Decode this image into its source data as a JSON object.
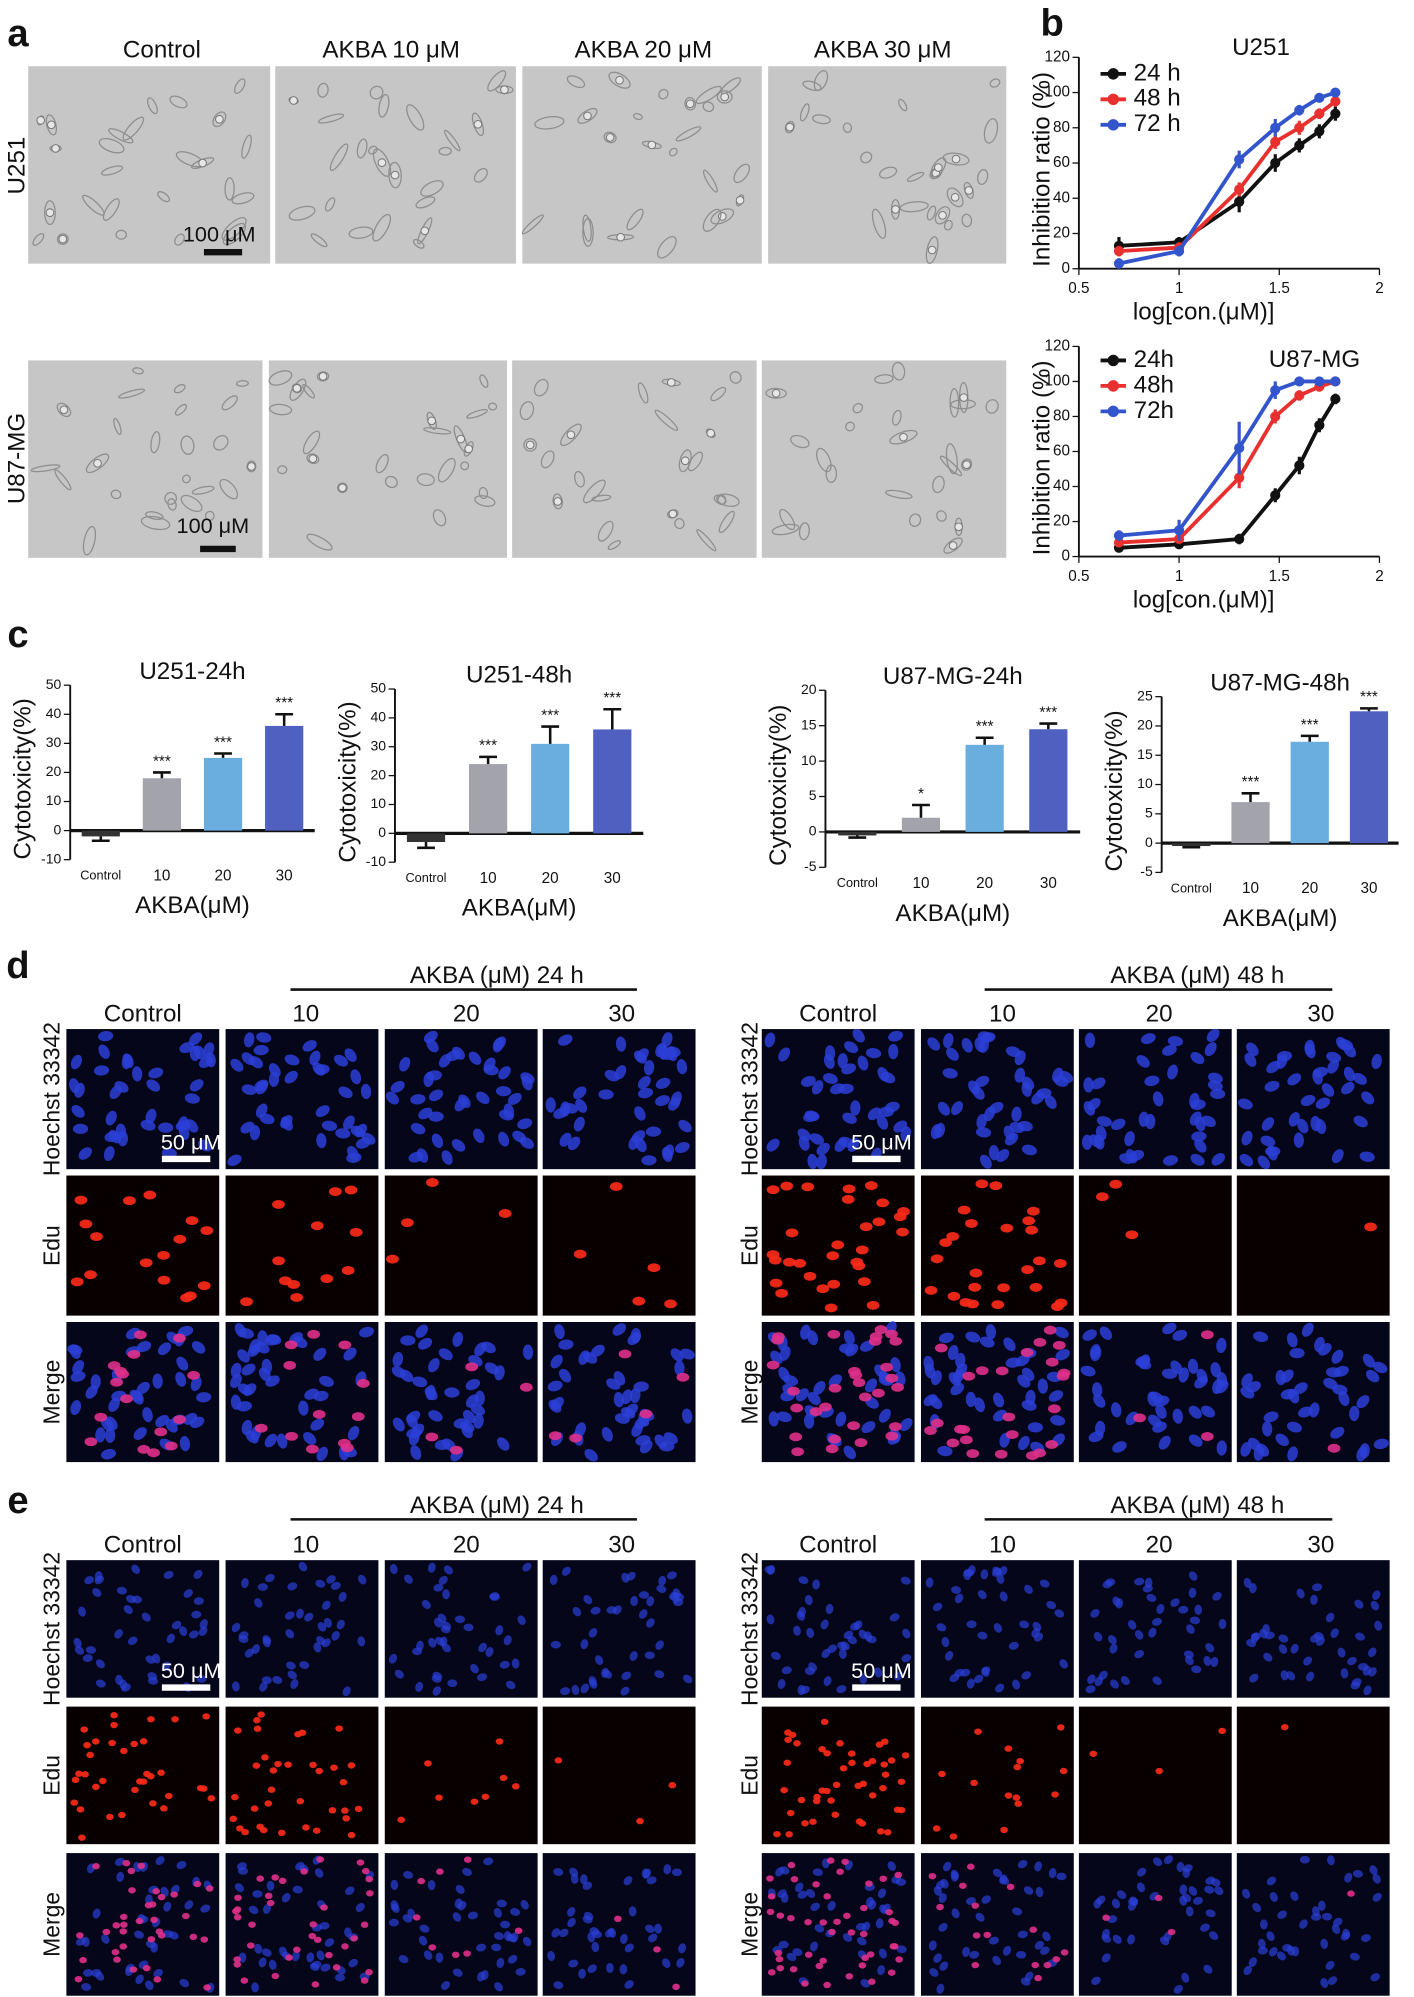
{
  "figure": {
    "panel_a": {
      "label": "a",
      "columns": [
        "Control",
        "AKBA 10 μM",
        "AKBA 20 μM",
        "AKBA 30 μM"
      ],
      "rows": [
        "U251",
        "U87-MG"
      ],
      "scale_bar": "100 μM"
    },
    "panel_b_label": "b",
    "panel_c_label": "c",
    "panel_d": {
      "label": "d",
      "groups": [
        {
          "header": "AKBA (μM) 24 h",
          "columns": [
            "Control",
            "10",
            "20",
            "30"
          ],
          "rows": [
            "Hoechst 33342",
            "Edu",
            "Merge"
          ],
          "scale_bar": "50 μM"
        },
        {
          "header": "AKBA (μM) 48 h",
          "columns": [
            "Control",
            "10",
            "20",
            "30"
          ],
          "rows": [
            "Hoechst 33342",
            "Edu",
            "Merge"
          ],
          "scale_bar": "50 μM"
        }
      ]
    },
    "panel_e": {
      "label": "e",
      "groups": [
        {
          "header": "AKBA (μM) 24 h",
          "columns": [
            "Control",
            "10",
            "20",
            "30"
          ],
          "rows": [
            "Hoechst 33342",
            "Edu",
            "Merge"
          ],
          "scale_bar": "50 μM"
        },
        {
          "header": "AKBA (μM) 48 h",
          "columns": [
            "Control",
            "10",
            "20",
            "30"
          ],
          "rows": [
            "Hoechst 33342",
            "Edu",
            "Merge"
          ],
          "scale_bar": "50 μM"
        }
      ]
    }
  },
  "chart_data": [
    {
      "type": "line",
      "title": "U251",
      "x_label": "log[con.(μM)]",
      "y_label": "Inhibition ratio (%)",
      "x": [
        0.7,
        1,
        1.3,
        1.48,
        1.6,
        1.7,
        1.78
      ],
      "series": [
        {
          "name": "24 h",
          "color": "#111111",
          "values": [
            13,
            15,
            38,
            60,
            70,
            78,
            88
          ],
          "errors": [
            5,
            3,
            6,
            5,
            4,
            4,
            4
          ]
        },
        {
          "name": "48 h",
          "color": "#e8312f",
          "values": [
            10,
            12,
            45,
            72,
            80,
            88,
            95
          ],
          "errors": [
            3,
            3,
            4,
            4,
            4,
            3,
            3
          ]
        },
        {
          "name": "72 h",
          "color": "#3355cc",
          "values": [
            3,
            10,
            62,
            80,
            90,
            97,
            100
          ],
          "errors": [
            3,
            3,
            5,
            5,
            3,
            2,
            2
          ]
        }
      ],
      "xlim": [
        0.5,
        2
      ],
      "xticks": [
        0.5,
        1,
        1.5,
        2
      ],
      "ylim": [
        0,
        120
      ],
      "yticks": [
        0,
        20,
        40,
        60,
        80,
        100,
        120
      ],
      "legend": "upper left"
    },
    {
      "type": "line",
      "title": "U87-MG",
      "x_label": "log[con.(μM)]",
      "y_label": "Inhibition ratio (%)",
      "x": [
        0.7,
        1,
        1.3,
        1.48,
        1.6,
        1.7,
        1.78
      ],
      "series": [
        {
          "name": "24h",
          "color": "#111111",
          "values": [
            5,
            7,
            10,
            35,
            52,
            75,
            90
          ],
          "errors": [
            2,
            2,
            3,
            4,
            5,
            4,
            3
          ]
        },
        {
          "name": "48h",
          "color": "#e8312f",
          "values": [
            8,
            10,
            45,
            80,
            92,
            97,
            100
          ],
          "errors": [
            2,
            2,
            6,
            4,
            3,
            2,
            2
          ]
        },
        {
          "name": "72h",
          "color": "#3355cc",
          "values": [
            12,
            15,
            62,
            95,
            100,
            100,
            100
          ],
          "errors": [
            3,
            6,
            15,
            5,
            2,
            2,
            2
          ]
        }
      ],
      "xlim": [
        0.5,
        2
      ],
      "xticks": [
        0.5,
        1,
        1.5,
        2
      ],
      "ylim": [
        0,
        120
      ],
      "yticks": [
        0,
        20,
        40,
        60,
        80,
        100,
        120
      ],
      "legend": "upper left"
    },
    {
      "type": "bar",
      "title": "U251-24h",
      "x_label": "AKBA(μM)",
      "y_label": "Cytotoxicity(%)",
      "categories": [
        "Control",
        "10",
        "20",
        "30"
      ],
      "values": [
        -2,
        18,
        25,
        36
      ],
      "errors": [
        1.5,
        2,
        1.5,
        4
      ],
      "annotations": [
        null,
        "***",
        "***",
        "***"
      ],
      "colors": [
        "#333333",
        "#a3a3ab",
        "#6aaee0",
        "#5060c0"
      ],
      "ylim": [
        -10,
        50
      ],
      "yticks": [
        -10,
        0,
        10,
        20,
        30,
        40,
        50
      ]
    },
    {
      "type": "bar",
      "title": "U251-48h",
      "x_label": "AKBA(μM)",
      "y_label": "Cytotoxicity(%)",
      "categories": [
        "Control",
        "10",
        "20",
        "30"
      ],
      "values": [
        -3,
        24,
        31,
        36
      ],
      "errors": [
        2,
        2.5,
        6,
        7
      ],
      "annotations": [
        null,
        "***",
        "***",
        "***"
      ],
      "colors": [
        "#333333",
        "#a3a3ab",
        "#6aaee0",
        "#5060c0"
      ],
      "ylim": [
        -10,
        50
      ],
      "yticks": [
        -10,
        0,
        10,
        20,
        30,
        40,
        50
      ]
    },
    {
      "type": "bar",
      "title": "U87-MG-24h",
      "x_label": "AKBA(μM)",
      "y_label": "Cytotoxicity(%)",
      "categories": [
        "Control",
        "10",
        "20",
        "30"
      ],
      "values": [
        -0.5,
        2,
        12.3,
        14.5
      ],
      "errors": [
        0.3,
        1.8,
        1,
        0.8
      ],
      "annotations": [
        null,
        "*",
        "***",
        "***"
      ],
      "colors": [
        "#333333",
        "#a3a3ab",
        "#6aaee0",
        "#5060c0"
      ],
      "ylim": [
        -5,
        20
      ],
      "yticks": [
        -5,
        0,
        5,
        10,
        15,
        20
      ]
    },
    {
      "type": "bar",
      "title": "U87-MG-48h",
      "x_label": "AKBA(μM)",
      "y_label": "Cytotoxicity(%)",
      "categories": [
        "Control",
        "10",
        "20",
        "30"
      ],
      "values": [
        -0.5,
        7,
        17.3,
        22.5
      ],
      "errors": [
        0.2,
        1.5,
        1,
        0.5
      ],
      "annotations": [
        null,
        "***",
        "***",
        "***"
      ],
      "colors": [
        "#333333",
        "#a3a3ab",
        "#6aaee0",
        "#5060c0"
      ],
      "ylim": [
        -5,
        25
      ],
      "yticks": [
        -5,
        0,
        5,
        10,
        15,
        20,
        25
      ]
    }
  ]
}
